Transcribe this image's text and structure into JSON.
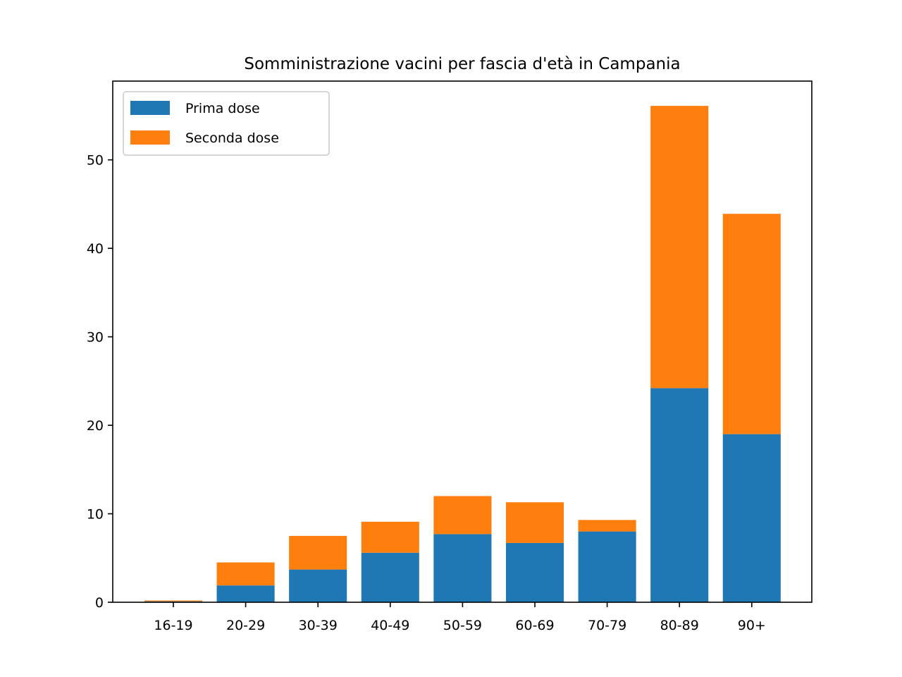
{
  "chart_data": {
    "type": "bar",
    "stacked": true,
    "title": "Somministrazione vacini per fascia d'età in Campania",
    "xlabel": "",
    "ylabel": "",
    "categories": [
      "16-19",
      "20-29",
      "30-39",
      "40-49",
      "50-59",
      "60-69",
      "70-79",
      "80-89",
      "90+"
    ],
    "series": [
      {
        "name": "Prima dose",
        "color": "#1f77b4",
        "values": [
          0.1,
          1.9,
          3.7,
          5.6,
          7.7,
          6.7,
          8.0,
          24.2,
          19.0
        ]
      },
      {
        "name": "Seconda dose",
        "color": "#ff7f0e",
        "values": [
          0.1,
          2.6,
          3.8,
          3.5,
          4.3,
          4.6,
          1.3,
          31.9,
          24.9
        ]
      }
    ],
    "ylim": [
      0,
      58.9
    ],
    "yticks": [
      0,
      10,
      20,
      30,
      40,
      50
    ],
    "grid": false,
    "legend_position": "top-left"
  }
}
